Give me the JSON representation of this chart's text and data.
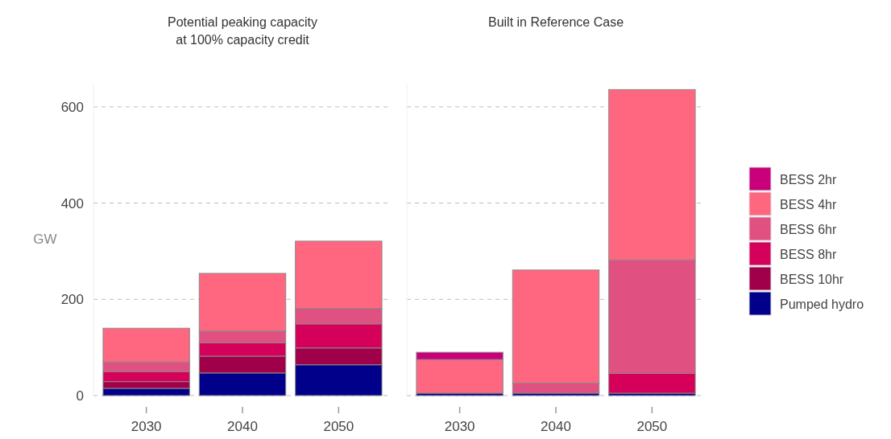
{
  "chart_data": [
    {
      "type": "bar",
      "title": "Potential peaking capacity\nat 100% capacity credit",
      "ylabel": "GW",
      "categories": [
        "2030",
        "2040",
        "2050"
      ],
      "stacked": true,
      "ylim": [
        0,
        650
      ],
      "yticks": [
        0,
        200,
        400,
        600
      ],
      "grid": "y",
      "legend": "right",
      "series": [
        {
          "name": "Pumped hydro",
          "color": "#00008b",
          "values": [
            15,
            47,
            64
          ]
        },
        {
          "name": "BESS 10hr",
          "color": "#a0004a",
          "values": [
            14,
            35,
            35
          ]
        },
        {
          "name": "BESS 8hr",
          "color": "#d4005a",
          "values": [
            21,
            28,
            50
          ]
        },
        {
          "name": "BESS 6hr",
          "color": "#e05080",
          "values": [
            20,
            24,
            32
          ]
        },
        {
          "name": "BESS 4hr",
          "color": "#ff6680",
          "values": [
            70,
            120,
            140
          ]
        },
        {
          "name": "BESS 2hr",
          "color": "#c8007a",
          "values": [
            0,
            0,
            0
          ]
        }
      ]
    },
    {
      "type": "bar",
      "title": "Built in Reference Case",
      "categories": [
        "2030",
        "2040",
        "2050"
      ],
      "stacked": true,
      "ylim": [
        0,
        650
      ],
      "yticks": [
        0,
        200,
        400,
        600
      ],
      "grid": "y",
      "tick_labels": "x",
      "series": [
        {
          "color": "#00008b",
          "values": [
            5,
            5,
            5
          ]
        },
        {
          "color": "#d4005a",
          "values": [
            0,
            0,
            41
          ]
        },
        {
          "color": "#e05080",
          "values": [
            0,
            21,
            236
          ]
        },
        {
          "color": "#ff6680",
          "values": [
            70,
            235,
            354
          ]
        },
        {
          "color": "#c8007a",
          "values": [
            15,
            0,
            0
          ]
        }
      ]
    }
  ]
}
